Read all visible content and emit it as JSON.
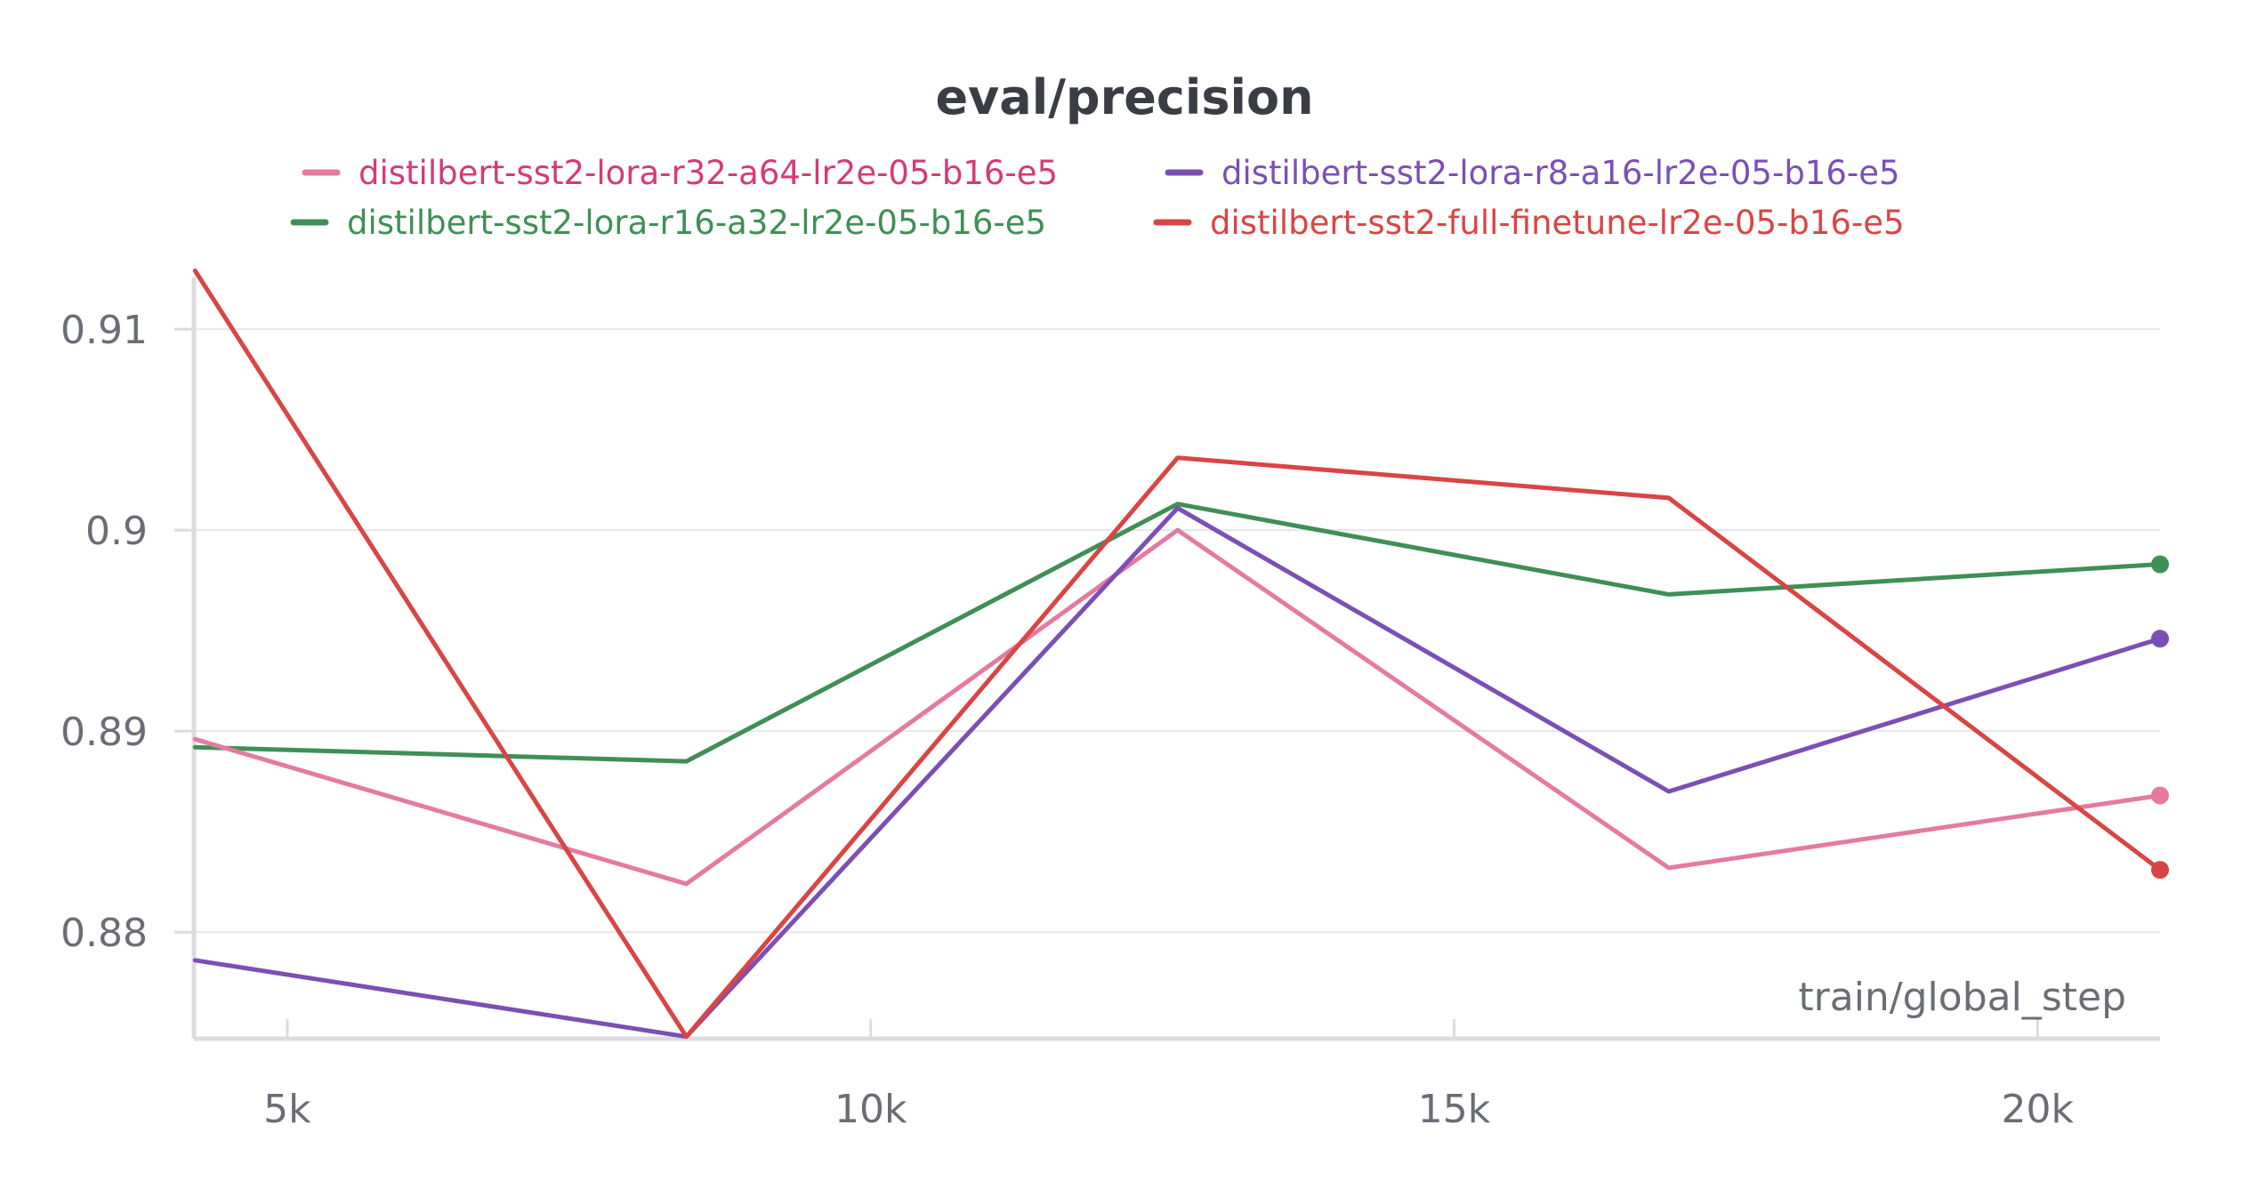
{
  "chart_data": {
    "type": "line",
    "title": "eval/precision",
    "xlabel": "train/global_step",
    "ylabel": "",
    "xlim": [
      4200,
      21050
    ],
    "ylim": [
      0.8747,
      0.9131
    ],
    "xticks": [
      {
        "value": 5000,
        "label": "5k"
      },
      {
        "value": 10000,
        "label": "10k"
      },
      {
        "value": 15000,
        "label": "15k"
      },
      {
        "value": 20000,
        "label": "20k"
      }
    ],
    "yticks": [
      {
        "value": 0.88,
        "label": "0.88"
      },
      {
        "value": 0.89,
        "label": "0.89"
      },
      {
        "value": 0.9,
        "label": "0.9"
      },
      {
        "value": 0.91,
        "label": "0.91"
      }
    ],
    "grid": true,
    "legend_position": "top-center",
    "x": [
      4210,
      8420,
      12630,
      16840,
      21050
    ],
    "series": [
      {
        "name": "distilbert-sst2-lora-r32-a64-lr2e-05-b16-e5",
        "color": "#e57aa0",
        "text_color": "#d63a75",
        "values": [
          0.8896,
          0.8824,
          0.9,
          0.8832,
          0.8868
        ]
      },
      {
        "name": "distilbert-sst2-lora-r8-a16-lr2e-05-b16-e5",
        "color": "#7b4fb5",
        "text_color": "#7b4fb5",
        "values": [
          0.8786,
          0.8748,
          0.9011,
          0.887,
          0.8946
        ]
      },
      {
        "name": "distilbert-sst2-lora-r16-a32-lr2e-05-b16-e5",
        "color": "#3f8f56",
        "text_color": "#3f8f56",
        "values": [
          0.8892,
          0.8885,
          0.9013,
          0.8968,
          0.8983
        ]
      },
      {
        "name": "distilbert-sst2-full-finetune-lr2e-05-b16-e5",
        "color": "#d94545",
        "text_color": "#d94545",
        "values": [
          0.9129,
          0.8748,
          0.9036,
          0.9016,
          0.8831
        ]
      }
    ]
  }
}
